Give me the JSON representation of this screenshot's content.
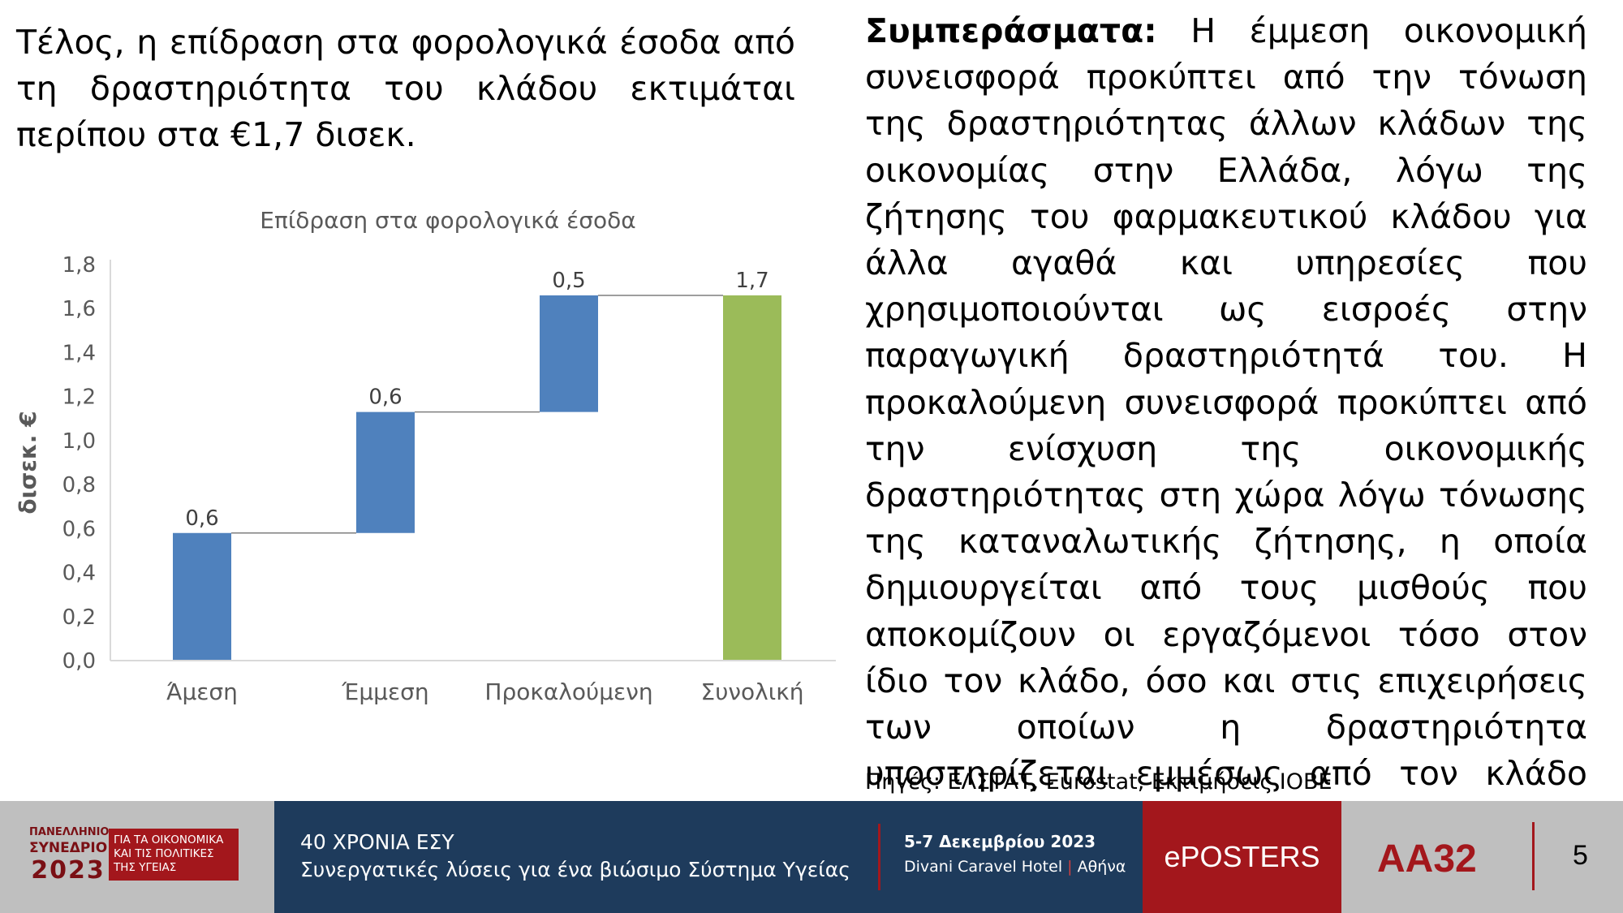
{
  "intro_text": "Τέλος, η επίδραση στα φορολογικά έσοδα από τη δραστηριότητα του κλάδου εκτιμάται περίπου στα €1,7 δισεκ.",
  "conclusions": {
    "heading": "Συμπεράσματα:",
    "body": " Η έμμεση οικονομική συνεισφορά προκύπτει από την τόνωση της δραστηριότητας άλλων κλάδων της οικονομίας στην Ελλάδα, λόγω της ζήτησης του φαρμακευτικού κλάδου για άλλα αγαθά και υπηρεσίες που χρησιμοποιούνται ως εισροές στην παραγωγική δραστηριότητά του. Η προκαλούμενη συνεισφορά προκύπτει από την ενίσχυση της οικονομικής δραστηριότητας στη χώρα λόγω τόνωσης της καταναλωτικής ζήτησης, η οποία δημιουργείται από τους μισθούς που αποκομίζουν οι εργαζόμενοι τόσο στον ίδιο τον κλάδο, όσο και στις επιχειρήσεις των οποίων η δραστηριότητα υποστηρίζεται εμμέσως από τον κλάδο των φαρμάκων."
  },
  "sources": "Πηγές: ΕΛΣΤΑΤ, Eurostat, Εκτιμήσεις ΙΟΒΕ",
  "chart_data": {
    "type": "bar",
    "subtype": "waterfall",
    "title": "Επίδραση στα φορολογικά έσοδα",
    "ylabel": "δισεκ. €",
    "xlabel": "",
    "ylim": [
      0,
      1.8
    ],
    "yticks": [
      "0,0",
      "0,2",
      "0,4",
      "0,6",
      "0,8",
      "1,0",
      "1,2",
      "1,4",
      "1,6",
      "1,8"
    ],
    "grid": false,
    "categories": [
      "Άμεση",
      "Έμμεση",
      "Προκαλούμενη",
      "Συνολική"
    ],
    "values": [
      0.58,
      0.55,
      0.53,
      1.66
    ],
    "bases": [
      0,
      0.58,
      1.13,
      0
    ],
    "data_labels": [
      "0,6",
      "0,6",
      "0,5",
      "1,7"
    ],
    "colors": [
      "#4f81bd",
      "#4f81bd",
      "#4f81bd",
      "#9bbb59"
    ],
    "connector_color": "#7f7f7f",
    "axis_color": "#d9d9d9"
  },
  "footer": {
    "logo_small": "ΠΑΝΕΛΛΗΝΙΟ",
    "logo_syn": "ΣΥΝΕΔΡΙΟ",
    "logo_year": "2023",
    "logo_line1": "ΓΙΑ ΤΑ ΟΙΚΟΝΟΜΙΚΑ",
    "logo_line2": "ΚΑΙ ΤΙΣ ΠΟΛΙΤΙΚΕΣ",
    "logo_line3": "ΤΗΣ ΥΓΕΙΑΣ",
    "event_title": "40 ΧΡΟΝΙΑ ΕΣΥ",
    "event_subtitle": "Συνεργατικές λύσεις για ένα βιώσιμο Σύστημα Υγείας",
    "dates": "5-7 Δεκεμβρίου 2023",
    "venue": "Divani Caravel Hotel",
    "venue_sep": "|",
    "city": "Αθήνα",
    "eposters": "ePOSTERS",
    "code": "ΑΑ32",
    "page_number": "5"
  }
}
